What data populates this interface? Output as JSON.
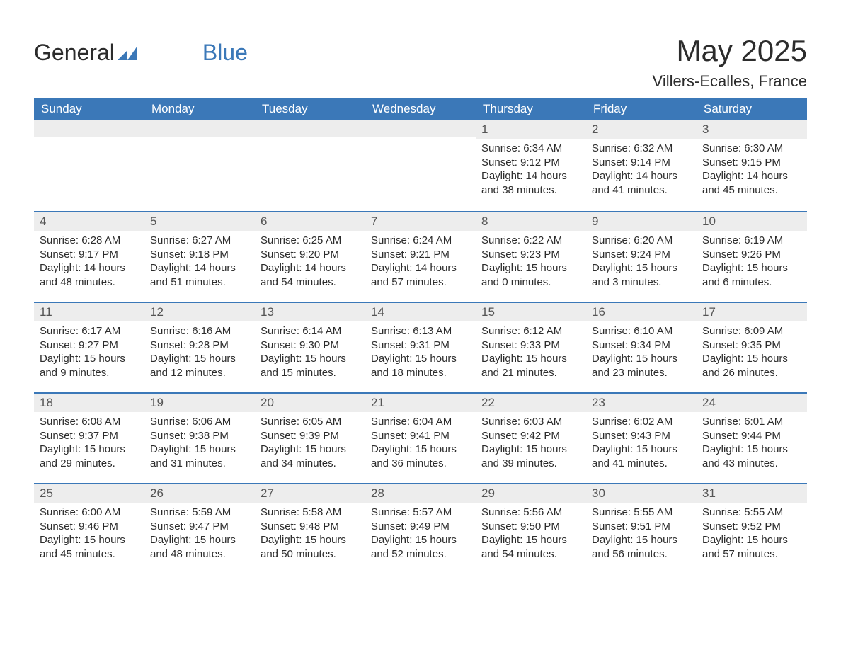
{
  "brand": {
    "part1": "General",
    "part2": "Blue"
  },
  "title": "May 2025",
  "location": "Villers-Ecalles, France",
  "colors": {
    "header_bg": "#3b78b8",
    "header_text": "#ffffff",
    "daybar_bg": "#ededed",
    "daybar_border": "#3b78b8",
    "body_text": "#2c2c2c",
    "page_bg": "#ffffff"
  },
  "weekdays": [
    "Sunday",
    "Monday",
    "Tuesday",
    "Wednesday",
    "Thursday",
    "Friday",
    "Saturday"
  ],
  "weeks": [
    [
      null,
      null,
      null,
      null,
      {
        "n": "1",
        "sunrise": "6:34 AM",
        "sunset": "9:12 PM",
        "dlh": "14",
        "dlm": "38"
      },
      {
        "n": "2",
        "sunrise": "6:32 AM",
        "sunset": "9:14 PM",
        "dlh": "14",
        "dlm": "41"
      },
      {
        "n": "3",
        "sunrise": "6:30 AM",
        "sunset": "9:15 PM",
        "dlh": "14",
        "dlm": "45"
      }
    ],
    [
      {
        "n": "4",
        "sunrise": "6:28 AM",
        "sunset": "9:17 PM",
        "dlh": "14",
        "dlm": "48"
      },
      {
        "n": "5",
        "sunrise": "6:27 AM",
        "sunset": "9:18 PM",
        "dlh": "14",
        "dlm": "51"
      },
      {
        "n": "6",
        "sunrise": "6:25 AM",
        "sunset": "9:20 PM",
        "dlh": "14",
        "dlm": "54"
      },
      {
        "n": "7",
        "sunrise": "6:24 AM",
        "sunset": "9:21 PM",
        "dlh": "14",
        "dlm": "57"
      },
      {
        "n": "8",
        "sunrise": "6:22 AM",
        "sunset": "9:23 PM",
        "dlh": "15",
        "dlm": "0"
      },
      {
        "n": "9",
        "sunrise": "6:20 AM",
        "sunset": "9:24 PM",
        "dlh": "15",
        "dlm": "3"
      },
      {
        "n": "10",
        "sunrise": "6:19 AM",
        "sunset": "9:26 PM",
        "dlh": "15",
        "dlm": "6"
      }
    ],
    [
      {
        "n": "11",
        "sunrise": "6:17 AM",
        "sunset": "9:27 PM",
        "dlh": "15",
        "dlm": "9"
      },
      {
        "n": "12",
        "sunrise": "6:16 AM",
        "sunset": "9:28 PM",
        "dlh": "15",
        "dlm": "12"
      },
      {
        "n": "13",
        "sunrise": "6:14 AM",
        "sunset": "9:30 PM",
        "dlh": "15",
        "dlm": "15"
      },
      {
        "n": "14",
        "sunrise": "6:13 AM",
        "sunset": "9:31 PM",
        "dlh": "15",
        "dlm": "18"
      },
      {
        "n": "15",
        "sunrise": "6:12 AM",
        "sunset": "9:33 PM",
        "dlh": "15",
        "dlm": "21"
      },
      {
        "n": "16",
        "sunrise": "6:10 AM",
        "sunset": "9:34 PM",
        "dlh": "15",
        "dlm": "23"
      },
      {
        "n": "17",
        "sunrise": "6:09 AM",
        "sunset": "9:35 PM",
        "dlh": "15",
        "dlm": "26"
      }
    ],
    [
      {
        "n": "18",
        "sunrise": "6:08 AM",
        "sunset": "9:37 PM",
        "dlh": "15",
        "dlm": "29"
      },
      {
        "n": "19",
        "sunrise": "6:06 AM",
        "sunset": "9:38 PM",
        "dlh": "15",
        "dlm": "31"
      },
      {
        "n": "20",
        "sunrise": "6:05 AM",
        "sunset": "9:39 PM",
        "dlh": "15",
        "dlm": "34"
      },
      {
        "n": "21",
        "sunrise": "6:04 AM",
        "sunset": "9:41 PM",
        "dlh": "15",
        "dlm": "36"
      },
      {
        "n": "22",
        "sunrise": "6:03 AM",
        "sunset": "9:42 PM",
        "dlh": "15",
        "dlm": "39"
      },
      {
        "n": "23",
        "sunrise": "6:02 AM",
        "sunset": "9:43 PM",
        "dlh": "15",
        "dlm": "41"
      },
      {
        "n": "24",
        "sunrise": "6:01 AM",
        "sunset": "9:44 PM",
        "dlh": "15",
        "dlm": "43"
      }
    ],
    [
      {
        "n": "25",
        "sunrise": "6:00 AM",
        "sunset": "9:46 PM",
        "dlh": "15",
        "dlm": "45"
      },
      {
        "n": "26",
        "sunrise": "5:59 AM",
        "sunset": "9:47 PM",
        "dlh": "15",
        "dlm": "48"
      },
      {
        "n": "27",
        "sunrise": "5:58 AM",
        "sunset": "9:48 PM",
        "dlh": "15",
        "dlm": "50"
      },
      {
        "n": "28",
        "sunrise": "5:57 AM",
        "sunset": "9:49 PM",
        "dlh": "15",
        "dlm": "52"
      },
      {
        "n": "29",
        "sunrise": "5:56 AM",
        "sunset": "9:50 PM",
        "dlh": "15",
        "dlm": "54"
      },
      {
        "n": "30",
        "sunrise": "5:55 AM",
        "sunset": "9:51 PM",
        "dlh": "15",
        "dlm": "56"
      },
      {
        "n": "31",
        "sunrise": "5:55 AM",
        "sunset": "9:52 PM",
        "dlh": "15",
        "dlm": "57"
      }
    ]
  ],
  "labels": {
    "sunrise": "Sunrise: ",
    "sunset": "Sunset: ",
    "daylight_pre": "Daylight: ",
    "hours_word": " hours and ",
    "minutes_word": " minutes."
  }
}
